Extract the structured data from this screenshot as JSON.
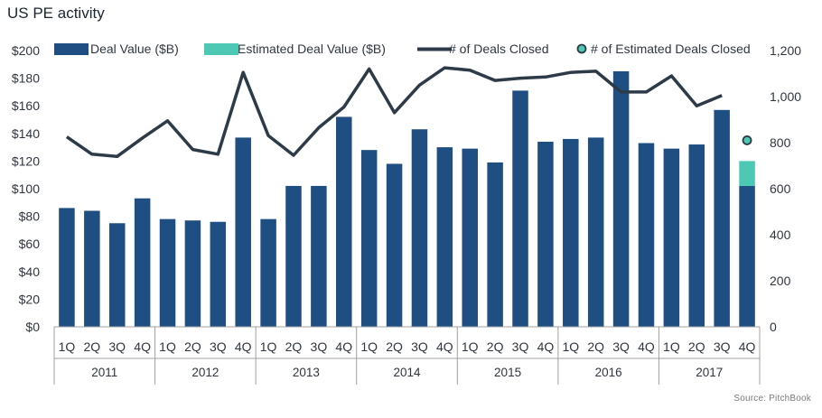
{
  "title": "US PE activity",
  "source": "Source: PitchBook",
  "chart_data": {
    "type": "bar",
    "title": "US PE activity",
    "categories": [
      "1Q",
      "2Q",
      "3Q",
      "4Q",
      "1Q",
      "2Q",
      "3Q",
      "4Q",
      "1Q",
      "2Q",
      "3Q",
      "4Q",
      "1Q",
      "2Q",
      "3Q",
      "4Q",
      "1Q",
      "2Q",
      "3Q",
      "4Q",
      "1Q",
      "2Q",
      "3Q",
      "4Q",
      "1Q",
      "2Q",
      "3Q",
      "4Q"
    ],
    "years": [
      "2011",
      "2012",
      "2013",
      "2014",
      "2015",
      "2016",
      "2017"
    ],
    "series": [
      {
        "name": "Deal Value ($B)",
        "axis": "left",
        "kind": "bar",
        "values": [
          86,
          84,
          75,
          93,
          78,
          77,
          76,
          137,
          78,
          102,
          102,
          152,
          128,
          118,
          143,
          130,
          129,
          119,
          171,
          134,
          136,
          137,
          185,
          133,
          129,
          132,
          157,
          102
        ]
      },
      {
        "name": "Estimated Deal Value ($B)",
        "axis": "left",
        "kind": "bar-stacked",
        "values": [
          null,
          null,
          null,
          null,
          null,
          null,
          null,
          null,
          null,
          null,
          null,
          null,
          null,
          null,
          null,
          null,
          null,
          null,
          null,
          null,
          null,
          null,
          null,
          null,
          null,
          null,
          null,
          18
        ]
      },
      {
        "name": "# of Deals Closed",
        "axis": "right",
        "kind": "line",
        "values": [
          825,
          750,
          740,
          820,
          895,
          770,
          750,
          1105,
          830,
          745,
          865,
          955,
          1120,
          930,
          1050,
          1125,
          1115,
          1070,
          1080,
          1085,
          1105,
          1110,
          1020,
          1020,
          1090,
          960,
          1005,
          null
        ]
      },
      {
        "name": "# of Estimated Deals Closed",
        "axis": "right",
        "kind": "point",
        "values": [
          null,
          null,
          null,
          null,
          null,
          null,
          null,
          null,
          null,
          null,
          null,
          null,
          null,
          null,
          null,
          null,
          null,
          null,
          null,
          null,
          null,
          null,
          null,
          null,
          null,
          null,
          null,
          810
        ]
      }
    ],
    "left_axis": {
      "min": 0,
      "max": 200,
      "step": 20,
      "ticks": [
        "$0",
        "$20",
        "$40",
        "$60",
        "$80",
        "$100",
        "$120",
        "$140",
        "$160",
        "$180",
        "$200"
      ]
    },
    "right_axis": {
      "min": 0,
      "max": 1200,
      "step": 200,
      "ticks": [
        "0",
        "200",
        "400",
        "600",
        "800",
        "1,000",
        "1,200"
      ]
    },
    "grid": false,
    "legend": "top",
    "colors": {
      "bar": "#1f4e82",
      "estimate": "#4dc8b4",
      "line": "#2d3a48",
      "point_edge": "#2d3a48",
      "axis": "#a0a0a0",
      "text": "#2f3640"
    }
  }
}
